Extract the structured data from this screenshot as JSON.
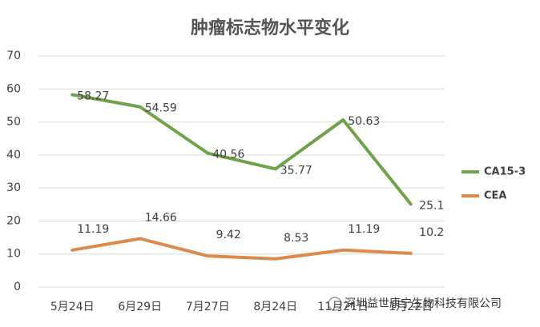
{
  "chart_data": {
    "type": "line",
    "title": "肿瘤标志物水平变化",
    "categories": [
      "5月24日",
      "6月29日",
      "7月27日",
      "8月24日",
      "11月21日",
      "1月22日"
    ],
    "series": [
      {
        "name": "CA15-3",
        "color": "#6fa34a",
        "values": [
          58.27,
          54.59,
          40.56,
          35.77,
          50.63,
          25.1
        ]
      },
      {
        "name": "CEA",
        "color": "#dc8a4d",
        "values": [
          11.19,
          14.66,
          9.42,
          8.53,
          11.19,
          10.2
        ]
      }
    ],
    "ylim": [
      0,
      70
    ],
    "yticks": [
      0,
      10,
      20,
      30,
      40,
      50,
      60,
      70
    ],
    "grid": true,
    "legend": "right"
  },
  "watermark": "深圳益世康宁生物科技有限公司"
}
